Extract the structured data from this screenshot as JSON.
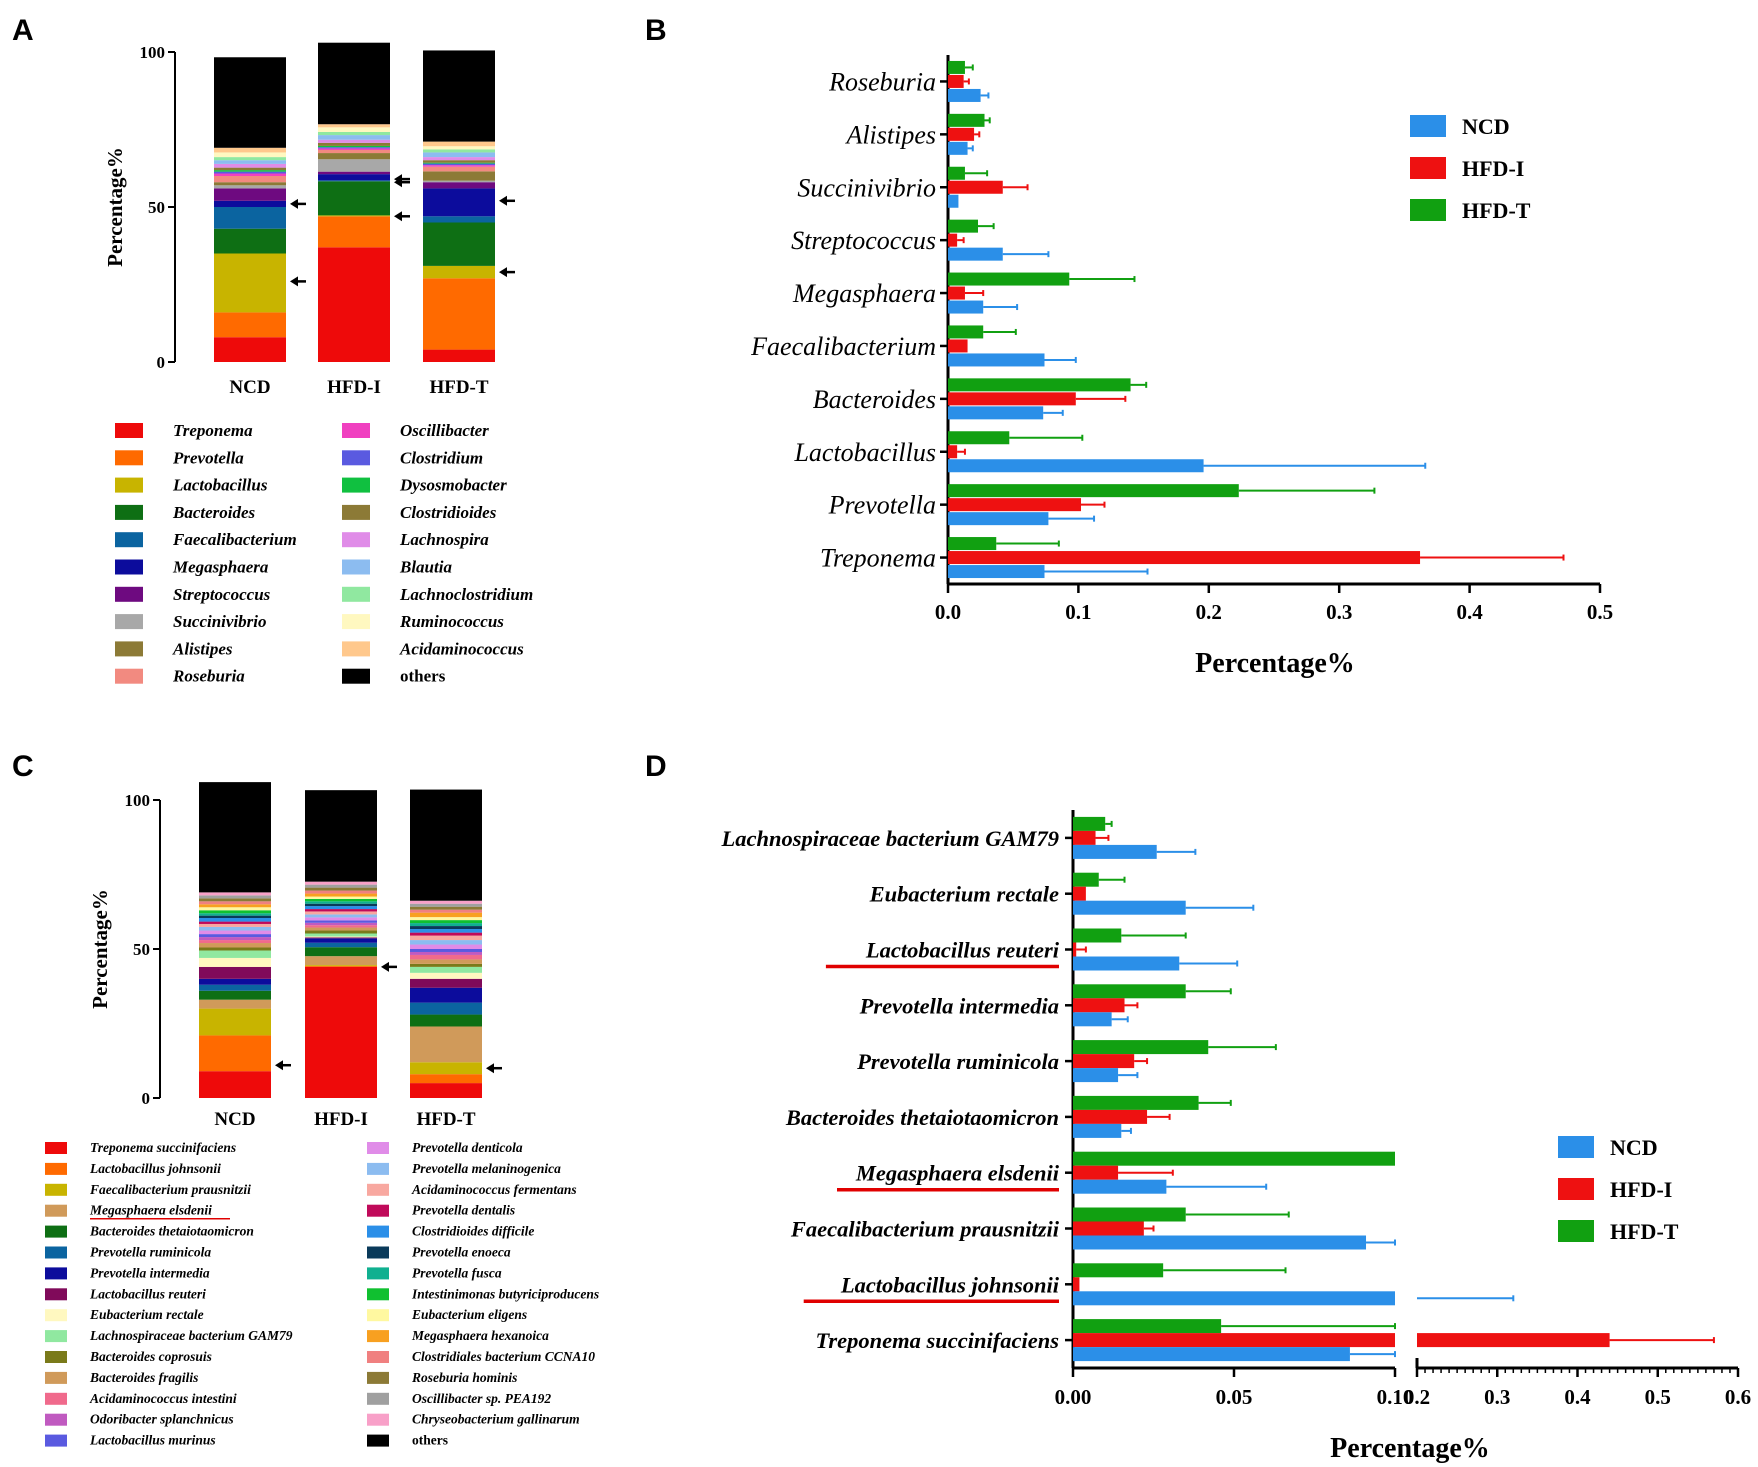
{
  "panel_labels": [
    "A",
    "B",
    "C",
    "D"
  ],
  "colors": {
    "ncd": "#2b8fe8",
    "hfdi": "#ee1111",
    "hfdt": "#11a011",
    "others": "#000000",
    "underline": "#e00000"
  },
  "chart_data": [
    {
      "panel": "A",
      "type": "bar",
      "stacked": true,
      "ylabel": "Percentage%",
      "ylim": [
        0,
        100
      ],
      "yticks": [
        "0",
        "50",
        "100"
      ],
      "categories": [
        "NCD",
        "HFD-I",
        "HFD-T"
      ],
      "arrows": [
        26,
        58,
        51,
        47,
        59,
        29,
        52
      ],
      "series": [
        {
          "name": "Treponema",
          "color": "#ee0a0a",
          "values": [
            8,
            37,
            4
          ]
        },
        {
          "name": "Prevotella",
          "color": "#ff6a00",
          "values": [
            8,
            10,
            23
          ]
        },
        {
          "name": "Lactobacillus",
          "color": "#c8b400",
          "values": [
            19,
            0.3,
            4
          ]
        },
        {
          "name": "Bacteroides",
          "color": "#0e6f14",
          "values": [
            8,
            11,
            14
          ]
        },
        {
          "name": "Faecalibacterium",
          "color": "#0b64a0",
          "values": [
            7,
            0.3,
            2
          ]
        },
        {
          "name": "Megasphaera",
          "color": "#0c0c9c",
          "values": [
            2,
            2,
            9
          ]
        },
        {
          "name": "Streptococcus",
          "color": "#6e0a80",
          "values": [
            4,
            0.8,
            2
          ]
        },
        {
          "name": "Succinivibrio",
          "color": "#a8a8a8",
          "values": [
            1,
            4,
            0.5
          ]
        },
        {
          "name": "Alistipes",
          "color": "#8c7a36",
          "values": [
            1,
            2,
            3
          ]
        },
        {
          "name": "Roseburia",
          "color": "#f28a80",
          "values": [
            2,
            1,
            1.5
          ]
        },
        {
          "name": "Oscillibacter",
          "color": "#f040c0",
          "values": [
            0.8,
            0.5,
            0.5
          ]
        },
        {
          "name": "Clostridium",
          "color": "#5a5ae0",
          "values": [
            0.6,
            0.4,
            0.5
          ]
        },
        {
          "name": "Dysosmobacter",
          "color": "#10c040",
          "values": [
            0.5,
            0.4,
            0.3
          ]
        },
        {
          "name": "Clostridioides",
          "color": "#8c7a36",
          "values": [
            0.8,
            1,
            0.8
          ]
        },
        {
          "name": "Lachnospira",
          "color": "#e08ce8",
          "values": [
            1.2,
            1,
            1
          ]
        },
        {
          "name": "Blautia",
          "color": "#8cbcf0",
          "values": [
            1.2,
            1.5,
            1.5
          ]
        },
        {
          "name": "Lachnoclostridium",
          "color": "#90e8a0",
          "values": [
            1,
            1,
            1
          ]
        },
        {
          "name": "Ruminococcus",
          "color": "#fff8c0",
          "values": [
            1.5,
            1.5,
            1
          ]
        },
        {
          "name": "Acidaminococcus",
          "color": "#ffc88c",
          "values": [
            1.5,
            1,
            1.5
          ]
        },
        {
          "name": "others",
          "color": "#000000",
          "values": [
            29.2,
            26.3,
            29.4
          ]
        }
      ],
      "legend_labels": [
        "Treponema",
        "Prevotella",
        "Lactobacillus",
        "Bacteroides",
        "Faecalibacterium",
        "Megasphaera",
        "Streptococcus",
        "Succinivibrio",
        "Alistipes",
        "Roseburia",
        "Oscillibacter",
        "Clostridium",
        "Dysosmobacter",
        "Clostridioides",
        "Lachnospira",
        "Blautia",
        "Lachnoclostridium",
        "Ruminococcus",
        "Acidaminococcus",
        "others"
      ]
    },
    {
      "panel": "B",
      "type": "bar",
      "orientation": "horizontal",
      "xlabel": "Percentage%",
      "xlim": [
        0,
        0.5
      ],
      "xticks": [
        "0.0",
        "0.1",
        "0.2",
        "0.3",
        "0.4",
        "0.5"
      ],
      "categories": [
        "Roseburia",
        "Alistipes",
        "Succinivibrio",
        "Streptococcus",
        "Megasphaera",
        "Faecalibacterium",
        "Bacteroides",
        "Lactobacillus",
        "Prevotella",
        "Treponema"
      ],
      "legend": [
        "NCD",
        "HFD-I",
        "HFD-T"
      ],
      "series": [
        {
          "name": "HFD-T",
          "values": [
            0.013,
            0.028,
            0.013,
            0.023,
            0.093,
            0.027,
            0.14,
            0.047,
            0.223,
            0.037
          ],
          "errors": [
            0.006,
            0.004,
            0.017,
            0.012,
            0.05,
            0.025,
            0.012,
            0.056,
            0.104,
            0.048
          ]
        },
        {
          "name": "HFD-I",
          "values": [
            0.012,
            0.02,
            0.042,
            0.007,
            0.013,
            0.015,
            0.098,
            0.007,
            0.102,
            0.362
          ],
          "errors": [
            0.004,
            0.004,
            0.019,
            0.005,
            0.014,
            0,
            0.038,
            0.006,
            0.018,
            0.11
          ]
        },
        {
          "name": "NCD",
          "values": [
            0.025,
            0.015,
            0.008,
            0.042,
            0.027,
            0.074,
            0.073,
            0.196,
            0.077,
            0.074
          ],
          "errors": [
            0.006,
            0.004,
            0,
            0.035,
            0.026,
            0.024,
            0.015,
            0.17,
            0.035,
            0.079
          ]
        }
      ]
    },
    {
      "panel": "C",
      "type": "bar",
      "stacked": true,
      "ylabel": "Percentage%",
      "ylim": [
        0,
        100
      ],
      "yticks": [
        "0",
        "50",
        "100"
      ],
      "categories": [
        "NCD",
        "HFD-I",
        "HFD-T"
      ],
      "arrows": [
        11,
        44,
        10
      ],
      "series": [
        {
          "name": "Treponema succinifaciens",
          "color": "#ee0a0a",
          "values": [
            9,
            44,
            5
          ]
        },
        {
          "name": "Lactobacillus johnsonii",
          "color": "#ff6a00",
          "values": [
            12,
            0.3,
            3
          ]
        },
        {
          "name": "Faecalibacterium prausnitzii",
          "color": "#c8b400",
          "values": [
            9,
            0.3,
            4
          ]
        },
        {
          "name": "Megasphaera elsdenii",
          "color": "#d09a5a",
          "values": [
            3,
            3,
            12
          ]
        },
        {
          "name": "Bacteroides thetaiotaomicron",
          "color": "#0e6f14",
          "values": [
            3,
            3,
            4
          ]
        },
        {
          "name": "Prevotella ruminicola",
          "color": "#0b64a0",
          "values": [
            2,
            1.5,
            4
          ]
        },
        {
          "name": "Prevotella intermedia",
          "color": "#0c0c9c",
          "values": [
            2,
            1.5,
            5
          ]
        },
        {
          "name": "Lactobacillus reuteri",
          "color": "#800a5a",
          "values": [
            4,
            0.3,
            3
          ]
        },
        {
          "name": "Eubacterium rectale",
          "color": "#fff8c0",
          "values": [
            3,
            0.3,
            2
          ]
        },
        {
          "name": "Lachnospiraceae bacterium GAM79",
          "color": "#90e8a0",
          "values": [
            2.5,
            1,
            2
          ]
        },
        {
          "name": "Bacteroides coprosuis",
          "color": "#7a7a1a",
          "values": [
            1,
            1,
            1
          ]
        },
        {
          "name": "Bacteroides fragilis",
          "color": "#d09a5a",
          "values": [
            1.5,
            1,
            1.5
          ]
        },
        {
          "name": "Acidaminococcus intestini",
          "color": "#f06a8c",
          "values": [
            1,
            0.8,
            1.5
          ]
        },
        {
          "name": "Odoribacter splanchnicus",
          "color": "#c05ac0",
          "values": [
            1,
            0.8,
            1
          ]
        },
        {
          "name": "Lactobacillus murinus",
          "color": "#5a5ae0",
          "values": [
            1,
            0.8,
            1
          ]
        },
        {
          "name": "Prevotella denticola",
          "color": "#e08ce8",
          "values": [
            1.2,
            1,
            1.5
          ]
        },
        {
          "name": "Prevotella melaninogenica",
          "color": "#8cbcf0",
          "values": [
            1.2,
            1,
            1.5
          ]
        },
        {
          "name": "Acidaminococcus fermentans",
          "color": "#f8a8a0",
          "values": [
            1,
            1,
            1.5
          ]
        },
        {
          "name": "Prevotella dentalis",
          "color": "#c00a5a",
          "values": [
            0.8,
            0.8,
            1
          ]
        },
        {
          "name": "Clostridioides difficile",
          "color": "#2b8fe8",
          "values": [
            1.2,
            1,
            1.2
          ]
        },
        {
          "name": "Prevotella enoeca",
          "color": "#0a3a5a",
          "values": [
            0.8,
            0.8,
            1
          ]
        },
        {
          "name": "Prevotella fusca",
          "color": "#10b090",
          "values": [
            0.8,
            0.8,
            1
          ]
        },
        {
          "name": "Intestinimonas butyriciproducens",
          "color": "#10c030",
          "values": [
            1,
            0.8,
            1
          ]
        },
        {
          "name": "Eubacterium eligens",
          "color": "#fff8a0",
          "values": [
            1,
            0.8,
            1
          ]
        },
        {
          "name": "Megasphaera hexanoica",
          "color": "#f8a020",
          "values": [
            1,
            1,
            1.5
          ]
        },
        {
          "name": "Clostridiales bacterium CCNA10",
          "color": "#f08080",
          "values": [
            1,
            1,
            1
          ]
        },
        {
          "name": "Roseburia hominis",
          "color": "#8c7a36",
          "values": [
            1,
            1,
            1
          ]
        },
        {
          "name": "Oscillibacter sp. PEA192",
          "color": "#a0a0a0",
          "values": [
            1,
            1,
            1
          ]
        },
        {
          "name": "Chryseobacterium gallinarum",
          "color": "#f8a0c8",
          "values": [
            1,
            1,
            1
          ]
        },
        {
          "name": "others",
          "color": "#000000",
          "values": [
            37,
            30.7,
            37.3
          ]
        }
      ],
      "legend_labels": [
        "Treponema succinifaciens",
        "Lactobacillus johnsonii",
        "Faecalibacterium prausnitzii",
        "Megasphaera elsdenii",
        "Bacteroides thetaiotaomicron",
        "Prevotella ruminicola",
        "Prevotella intermedia",
        "Lactobacillus reuteri",
        "Eubacterium rectale",
        "Lachnospiraceae bacterium GAM79",
        "Bacteroides coprosuis",
        "Bacteroides fragilis",
        "Acidaminococcus intestini",
        "Odoribacter splanchnicus",
        "Lactobacillus murinus",
        "Prevotella denticola",
        "Prevotella melaninogenica",
        "Acidaminococcus fermentans",
        "Prevotella dentalis",
        "Clostridioides difficile",
        "Prevotella enoeca",
        "Prevotella fusca",
        "Intestinimonas butyriciproducens",
        "Eubacterium eligens",
        "Megasphaera hexanoica",
        "Clostridiales bacterium CCNA10",
        "Roseburia hominis",
        "Oscillibacter sp. PEA192",
        "Chryseobacterium gallinarum",
        "others"
      ],
      "underlined": [
        "Megasphaera elsdenii"
      ]
    },
    {
      "panel": "D",
      "type": "bar",
      "orientation": "horizontal",
      "broken_axis": true,
      "xlabel": "Percentage%",
      "segment1": {
        "range": [
          0,
          0.1
        ],
        "ticks": [
          "0.00",
          "0.05",
          "0.10"
        ]
      },
      "segment2": {
        "range": [
          0.2,
          0.6
        ],
        "ticks": [
          "0.2",
          "0.3",
          "0.4",
          "0.5",
          "0.6"
        ]
      },
      "categories": [
        "Lachnospiraceae bacterium GAM79",
        "Eubacterium rectale",
        "Lactobacillus reuteri",
        "Prevotella intermedia",
        "Prevotella ruminicola",
        "Bacteroides thetaiotaomicron",
        "Megasphaera elsdenii",
        "Faecalibacterium prausnitzii",
        "Lactobacillus johnsonii",
        "Treponema succinifaciens"
      ],
      "underlined": [
        "Lactobacillus reuteri",
        "Megasphaera elsdenii",
        "Lactobacillus johnsonii"
      ],
      "legend": [
        "NCD",
        "HFD-I",
        "HFD-T"
      ],
      "series": [
        {
          "name": "HFD-T",
          "values": [
            0.01,
            0.008,
            0.015,
            0.035,
            0.042,
            0.039,
            0.1,
            0.035,
            0.028,
            0.046
          ],
          "errors": [
            0.002,
            0.008,
            0.02,
            0.014,
            0.021,
            0.01,
            0,
            0.032,
            0.038,
            0.054
          ]
        },
        {
          "name": "HFD-I",
          "values": [
            0.007,
            0.004,
            0.001,
            0.016,
            0.019,
            0.023,
            0.014,
            0.022,
            0.002,
            0.44
          ],
          "errors": [
            0.004,
            0,
            0.003,
            0.004,
            0.004,
            0.007,
            0.017,
            0.003,
            0,
            0.13
          ]
        },
        {
          "name": "NCD",
          "values": [
            0.026,
            0.035,
            0.033,
            0.012,
            0.014,
            0.015,
            0.029,
            0.091,
            0.2,
            0.086
          ],
          "errors": [
            0.012,
            0.021,
            0.018,
            0.005,
            0.006,
            0.003,
            0.031,
            0.009,
            0.12,
            0.014
          ]
        }
      ]
    }
  ]
}
